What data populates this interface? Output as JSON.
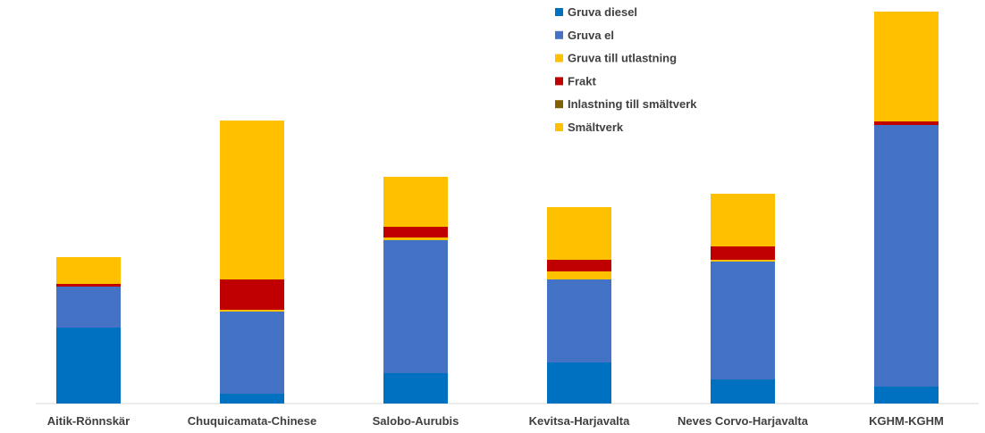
{
  "chart_data": {
    "type": "bar",
    "stacked": true,
    "categories": [
      "Aitik-Rönnskär",
      "Chuquicamata-Chinese",
      "Salobo-Aurubis",
      "Kevitsa-Harjavalta",
      "Neves Corvo-Harjavalta",
      "KGHM-KGHM"
    ],
    "series": [
      {
        "name": "Gruva diesel",
        "color": "#0070C0",
        "values": [
          85,
          11,
          34,
          46,
          27,
          19
        ]
      },
      {
        "name": "Gruva el",
        "color": "#4472C4",
        "values": [
          46,
          92,
          149,
          93,
          132,
          293
        ]
      },
      {
        "name": "Gruva till utlastning",
        "color": "#FFC000",
        "values": [
          0,
          2,
          3,
          9,
          2,
          0
        ]
      },
      {
        "name": "Frakt",
        "color": "#C00000",
        "values": [
          3,
          34,
          12,
          13,
          15,
          4
        ]
      },
      {
        "name": "Inlastning till smältverk",
        "color": "#806000",
        "values": [
          0,
          0,
          0,
          0,
          0,
          0
        ]
      },
      {
        "name": "Smältverk",
        "color": "#FFC000",
        "values": [
          30,
          178,
          56,
          59,
          59,
          123
        ]
      }
    ],
    "legend_position": "top-right",
    "grid": false
  }
}
